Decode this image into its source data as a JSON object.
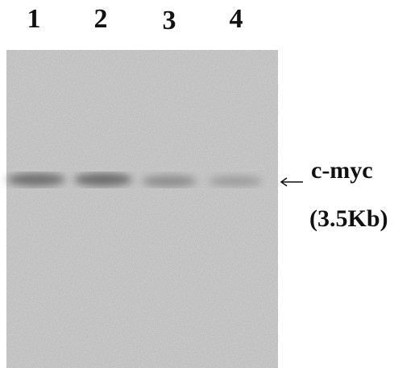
{
  "lanes": [
    "1",
    "2",
    "3",
    "4"
  ],
  "band": {
    "name": "c-myc",
    "size": "(3.5Kb)"
  }
}
